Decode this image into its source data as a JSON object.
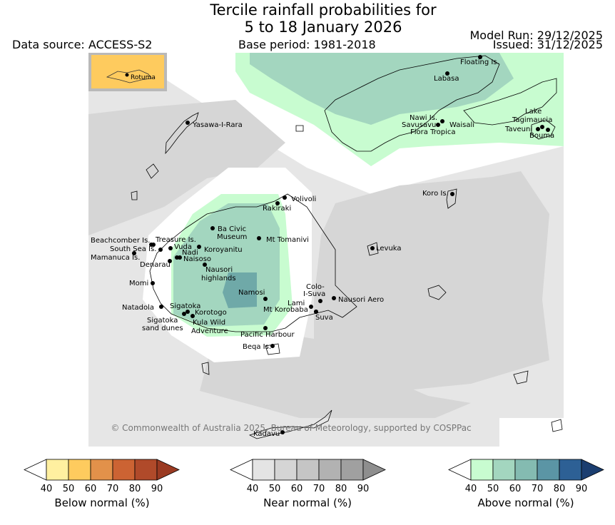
{
  "title": {
    "line1": "Tercile rainfall probabilities for",
    "line2": "5 to 18 January 2026"
  },
  "data_source": "Data source: ACCESS-S2",
  "base_period": "Base period: 1981-2018",
  "model_run": "Model Run: 29/12/2025",
  "issued": "Issued: 31/12/2025",
  "inset_label": "Rotuma",
  "copyright": "© Commonwealth of Australia 2025, Bureau of Meteorology, supported by COSPPac",
  "places": [
    "Floating Is.",
    "Labasa",
    "Nawi Is.",
    "Savusavu",
    "Waisali",
    "Flora Tropica",
    "Lake",
    "Tagimaucia",
    "Taveuni",
    "Bouma",
    "Yasawa-I-Rara",
    "Koro Is.",
    "Volivoli",
    "Rakiraki",
    "Ba Civic",
    "Museum",
    "Mt Tomanivi",
    "Beachcomber Is.",
    "Treasure Is.",
    "South Sea Is.",
    "Vuda",
    "Koroyanitu",
    "Nadi",
    "Mamanuca Is.",
    "Naisoso",
    "Denarau",
    "Nausori",
    "highlands",
    "Levuka",
    "Momi",
    "Colo-",
    "I-Suva",
    "Namosi",
    "Lami",
    "Nausori Aero",
    "Natadola",
    "Sigatoka",
    "Korotogo",
    "Mt Korobaba",
    "Sigatoka",
    "sand dunes",
    "Kula Wild",
    "Adventure",
    "Suva",
    "Pacific Harbour",
    "Beqa Is.",
    "Kadavu"
  ],
  "legends": {
    "below": {
      "title": "Below normal (%)",
      "colors": [
        "#fff0a0",
        "#fecb5e",
        "#e2914a",
        "#cc6333",
        "#b04a2a",
        "#9a3a22"
      ]
    },
    "near": {
      "title": "Near normal (%)",
      "colors": [
        "#e4e4e4",
        "#d5d5d5",
        "#c5c5c5",
        "#b2b2b2",
        "#a0a0a0",
        "#8e8e8e"
      ]
    },
    "above": {
      "title": "Above normal (%)",
      "colors": [
        "#c8fcd0",
        "#a3d6bf",
        "#84bbb1",
        "#5b95a5",
        "#2d6095",
        "#1b3e70"
      ]
    },
    "ticks": [
      "40",
      "50",
      "60",
      "70",
      "80",
      "90"
    ]
  }
}
